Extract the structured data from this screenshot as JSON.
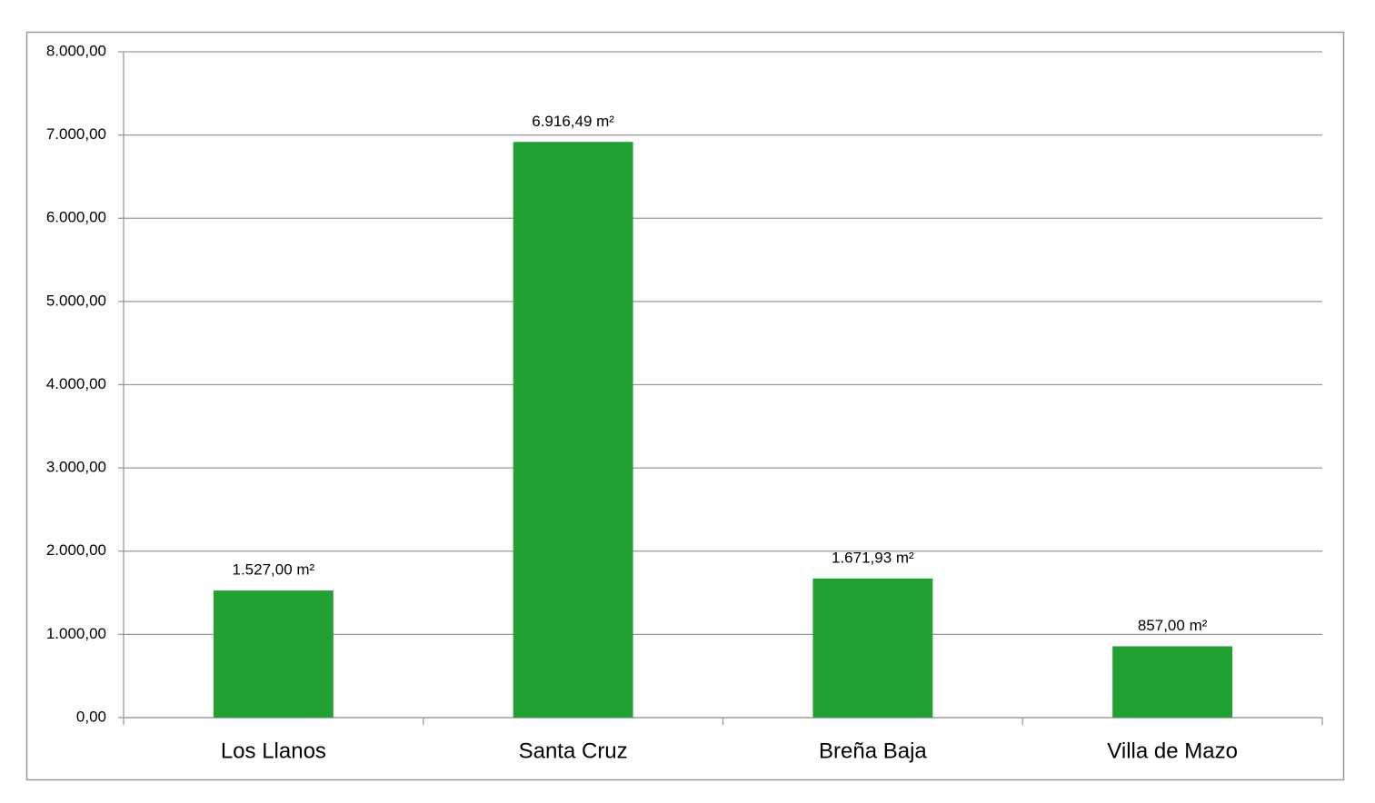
{
  "chart_data": {
    "type": "bar",
    "categories": [
      "Los Llanos",
      "Santa Cruz",
      "Breña Baja",
      "Villa de Mazo"
    ],
    "values": [
      1527,
      6916.49,
      1671.93,
      857
    ],
    "value_labels": [
      "1.527,00 m²",
      "6.916,49 m²",
      "1.671,93 m²",
      "857,00 m²"
    ],
    "color": "#21a131",
    "ylim": [
      0,
      8000
    ],
    "yticks": [
      {
        "value": 0,
        "label": "0,00"
      },
      {
        "value": 1000,
        "label": "1.000,00"
      },
      {
        "value": 2000,
        "label": "2.000,00"
      },
      {
        "value": 3000,
        "label": "3.000,00"
      },
      {
        "value": 4000,
        "label": "4.000,00"
      },
      {
        "value": 5000,
        "label": "5.000,00"
      },
      {
        "value": 6000,
        "label": "6.000,00"
      },
      {
        "value": 7000,
        "label": "7.000,00"
      },
      {
        "value": 8000,
        "label": "8.000,00"
      }
    ],
    "grid": true
  }
}
